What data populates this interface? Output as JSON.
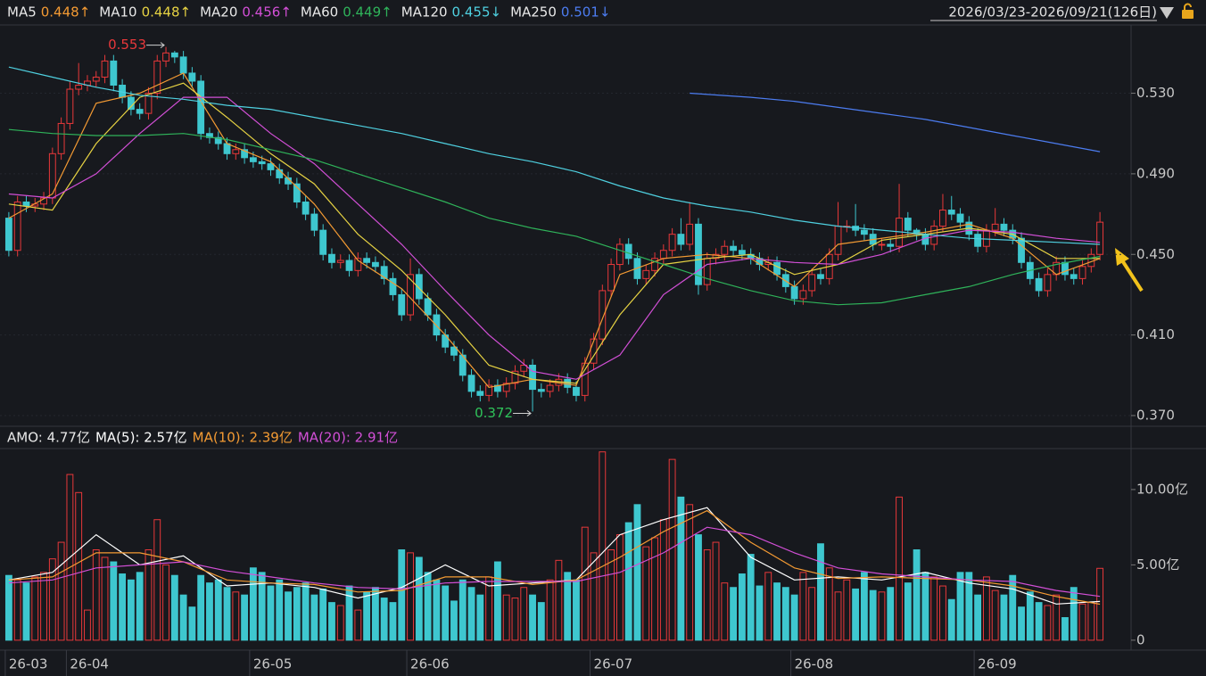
{
  "header": {
    "range": "2026/03/23-2026/09/21(126日)"
  },
  "chart_data": [
    {
      "type": "candlestick",
      "up_color": "#e8383a",
      "down_color": "#3ec7cf",
      "grid": true,
      "xlim": [
        -0.5,
        125.5
      ],
      "ylim": [
        0.366,
        0.563
      ],
      "yticks": [
        {
          "value": 0.37,
          "label": "0.370"
        },
        {
          "value": 0.41,
          "label": "0.410"
        },
        {
          "value": 0.45,
          "label": "0.450"
        },
        {
          "value": 0.49,
          "label": "0.490"
        },
        {
          "value": 0.53,
          "label": "0.530"
        }
      ],
      "open": [
        0.468,
        0.452,
        0.476,
        0.474,
        0.475,
        0.478,
        0.5,
        0.515,
        0.532,
        0.534,
        0.536,
        0.538,
        0.546,
        0.534,
        0.528,
        0.522,
        0.52,
        0.53,
        0.546,
        0.55,
        0.548,
        0.54,
        0.536,
        0.51,
        0.508,
        0.505,
        0.5,
        0.502,
        0.498,
        0.496,
        0.495,
        0.492,
        0.488,
        0.485,
        0.476,
        0.47,
        0.462,
        0.45,
        0.446,
        0.447,
        0.442,
        0.448,
        0.446,
        0.444,
        0.438,
        0.43,
        0.42,
        0.44,
        0.428,
        0.42,
        0.41,
        0.404,
        0.4,
        0.39,
        0.382,
        0.38,
        0.385,
        0.382,
        0.386,
        0.392,
        0.395,
        0.383,
        0.382,
        0.385,
        0.388,
        0.384,
        0.38,
        0.396,
        0.408,
        0.432,
        0.445,
        0.455,
        0.448,
        0.438,
        0.442,
        0.448,
        0.452,
        0.46,
        0.455,
        0.465,
        0.435,
        0.448,
        0.45,
        0.454,
        0.452,
        0.45,
        0.448,
        0.445,
        0.446,
        0.44,
        0.434,
        0.428,
        0.432,
        0.44,
        0.438,
        0.45,
        0.464,
        0.464,
        0.462,
        0.46,
        0.455,
        0.455,
        0.454,
        0.468,
        0.462,
        0.46,
        0.455,
        0.464,
        0.472,
        0.47,
        0.466,
        0.46,
        0.454,
        0.462,
        0.465,
        0.462,
        0.458,
        0.446,
        0.438,
        0.432,
        0.44,
        0.446,
        0.44,
        0.438,
        0.444,
        0.45
      ],
      "high": [
        0.471,
        0.479,
        0.479,
        0.478,
        0.481,
        0.503,
        0.518,
        0.536,
        0.545,
        0.539,
        0.541,
        0.549,
        0.549,
        0.537,
        0.531,
        0.525,
        0.533,
        0.549,
        0.553,
        0.551,
        0.551,
        0.543,
        0.539,
        0.513,
        0.511,
        0.508,
        0.505,
        0.505,
        0.501,
        0.499,
        0.498,
        0.495,
        0.491,
        0.488,
        0.479,
        0.473,
        0.465,
        0.453,
        0.45,
        0.45,
        0.451,
        0.451,
        0.449,
        0.447,
        0.441,
        0.433,
        0.448,
        0.443,
        0.431,
        0.423,
        0.413,
        0.407,
        0.403,
        0.393,
        0.385,
        0.388,
        0.388,
        0.389,
        0.395,
        0.398,
        0.398,
        0.386,
        0.388,
        0.391,
        0.391,
        0.387,
        0.399,
        0.411,
        0.435,
        0.448,
        0.458,
        0.458,
        0.451,
        0.445,
        0.451,
        0.455,
        0.463,
        0.468,
        0.476,
        0.468,
        0.451,
        0.453,
        0.457,
        0.457,
        0.455,
        0.453,
        0.451,
        0.449,
        0.449,
        0.443,
        0.437,
        0.435,
        0.443,
        0.443,
        0.453,
        0.476,
        0.467,
        0.475,
        0.465,
        0.463,
        0.458,
        0.458,
        0.485,
        0.471,
        0.463,
        0.463,
        0.467,
        0.48,
        0.479,
        0.473,
        0.469,
        0.463,
        0.465,
        0.473,
        0.468,
        0.465,
        0.461,
        0.449,
        0.441,
        0.443,
        0.449,
        0.449,
        0.443,
        0.447,
        0.453,
        0.471
      ],
      "low": [
        0.449,
        0.449,
        0.471,
        0.471,
        0.472,
        0.475,
        0.497,
        0.512,
        0.529,
        0.531,
        0.533,
        0.535,
        0.531,
        0.525,
        0.519,
        0.517,
        0.517,
        0.527,
        0.543,
        0.545,
        0.537,
        0.533,
        0.507,
        0.505,
        0.502,
        0.497,
        0.497,
        0.495,
        0.493,
        0.492,
        0.489,
        0.485,
        0.482,
        0.473,
        0.467,
        0.459,
        0.447,
        0.443,
        0.443,
        0.439,
        0.439,
        0.443,
        0.441,
        0.435,
        0.427,
        0.417,
        0.417,
        0.425,
        0.417,
        0.407,
        0.401,
        0.397,
        0.387,
        0.379,
        0.377,
        0.377,
        0.379,
        0.379,
        0.383,
        0.389,
        0.372,
        0.379,
        0.379,
        0.382,
        0.381,
        0.377,
        0.377,
        0.393,
        0.405,
        0.429,
        0.442,
        0.445,
        0.435,
        0.435,
        0.439,
        0.445,
        0.449,
        0.452,
        0.452,
        0.43,
        0.432,
        0.445,
        0.447,
        0.449,
        0.447,
        0.445,
        0.442,
        0.442,
        0.437,
        0.431,
        0.425,
        0.425,
        0.429,
        0.435,
        0.435,
        0.447,
        0.461,
        0.459,
        0.457,
        0.452,
        0.452,
        0.451,
        0.451,
        0.459,
        0.457,
        0.452,
        0.452,
        0.461,
        0.467,
        0.463,
        0.457,
        0.451,
        0.451,
        0.459,
        0.459,
        0.455,
        0.443,
        0.435,
        0.429,
        0.429,
        0.437,
        0.437,
        0.435,
        0.435,
        0.441,
        0.447
      ],
      "close": [
        0.452,
        0.476,
        0.474,
        0.475,
        0.478,
        0.5,
        0.515,
        0.532,
        0.534,
        0.536,
        0.538,
        0.546,
        0.534,
        0.528,
        0.522,
        0.52,
        0.53,
        0.546,
        0.55,
        0.548,
        0.54,
        0.536,
        0.51,
        0.508,
        0.505,
        0.5,
        0.502,
        0.498,
        0.496,
        0.495,
        0.492,
        0.488,
        0.485,
        0.476,
        0.47,
        0.462,
        0.45,
        0.446,
        0.447,
        0.442,
        0.448,
        0.446,
        0.444,
        0.438,
        0.43,
        0.42,
        0.44,
        0.428,
        0.42,
        0.41,
        0.404,
        0.4,
        0.39,
        0.382,
        0.38,
        0.385,
        0.382,
        0.386,
        0.392,
        0.395,
        0.383,
        0.382,
        0.385,
        0.388,
        0.384,
        0.38,
        0.396,
        0.408,
        0.432,
        0.445,
        0.455,
        0.448,
        0.438,
        0.442,
        0.448,
        0.452,
        0.46,
        0.455,
        0.465,
        0.435,
        0.448,
        0.45,
        0.454,
        0.452,
        0.45,
        0.448,
        0.445,
        0.446,
        0.44,
        0.434,
        0.428,
        0.432,
        0.44,
        0.438,
        0.45,
        0.464,
        0.464,
        0.462,
        0.46,
        0.455,
        0.455,
        0.454,
        0.468,
        0.462,
        0.46,
        0.455,
        0.464,
        0.472,
        0.47,
        0.466,
        0.46,
        0.454,
        0.462,
        0.465,
        0.462,
        0.458,
        0.446,
        0.438,
        0.432,
        0.44,
        0.446,
        0.44,
        0.438,
        0.444,
        0.45,
        0.466
      ],
      "max_label": {
        "text": "0.553",
        "index": 18
      },
      "min_label": {
        "text": "0.372",
        "index": 60
      },
      "series": [
        {
          "name": "MA5",
          "label": "0.448↑",
          "color": "#f39a33",
          "x": [
            0,
            5,
            10,
            15,
            20,
            25,
            30,
            35,
            40,
            45,
            50,
            55,
            60,
            65,
            70,
            75,
            80,
            85,
            90,
            95,
            100,
            105,
            110,
            115,
            120,
            125
          ],
          "values": [
            0.468,
            0.48,
            0.525,
            0.53,
            0.54,
            0.505,
            0.496,
            0.475,
            0.447,
            0.433,
            0.41,
            0.384,
            0.388,
            0.385,
            0.44,
            0.448,
            0.45,
            0.448,
            0.434,
            0.455,
            0.458,
            0.461,
            0.465,
            0.458,
            0.44,
            0.448
          ]
        },
        {
          "name": "MA10",
          "label": "0.448↑",
          "color": "#e6d243",
          "x": [
            0,
            5,
            10,
            15,
            20,
            25,
            30,
            35,
            40,
            45,
            50,
            55,
            60,
            65,
            70,
            75,
            80,
            85,
            90,
            95,
            100,
            105,
            110,
            115,
            120,
            125
          ],
          "values": [
            0.475,
            0.472,
            0.505,
            0.528,
            0.535,
            0.518,
            0.5,
            0.485,
            0.46,
            0.442,
            0.42,
            0.395,
            0.388,
            0.386,
            0.42,
            0.445,
            0.448,
            0.45,
            0.44,
            0.445,
            0.457,
            0.46,
            0.463,
            0.46,
            0.448,
            0.448
          ]
        },
        {
          "name": "MA20",
          "label": "0.456↑",
          "color": "#d24fd6",
          "x": [
            0,
            5,
            10,
            15,
            20,
            25,
            30,
            35,
            40,
            45,
            50,
            55,
            60,
            65,
            70,
            75,
            80,
            85,
            90,
            95,
            100,
            105,
            110,
            115,
            120,
            125
          ],
          "values": [
            0.48,
            0.478,
            0.49,
            0.51,
            0.528,
            0.528,
            0.51,
            0.495,
            0.475,
            0.455,
            0.432,
            0.41,
            0.392,
            0.388,
            0.4,
            0.43,
            0.445,
            0.448,
            0.446,
            0.445,
            0.45,
            0.458,
            0.462,
            0.461,
            0.458,
            0.456
          ]
        },
        {
          "name": "MA60",
          "label": "0.449↑",
          "color": "#2fb35a",
          "x": [
            0,
            5,
            10,
            15,
            20,
            25,
            30,
            35,
            40,
            45,
            50,
            55,
            60,
            65,
            70,
            75,
            80,
            85,
            90,
            95,
            100,
            105,
            110,
            115,
            120,
            125
          ],
          "values": [
            0.512,
            0.51,
            0.509,
            0.509,
            0.51,
            0.507,
            0.502,
            0.497,
            0.49,
            0.483,
            0.476,
            0.468,
            0.463,
            0.459,
            0.452,
            0.445,
            0.438,
            0.432,
            0.427,
            0.425,
            0.426,
            0.43,
            0.434,
            0.44,
            0.445,
            0.449
          ]
        },
        {
          "name": "MA120",
          "label": "0.455↓",
          "color": "#4fd0e0",
          "x": [
            0,
            5,
            10,
            15,
            20,
            25,
            30,
            35,
            40,
            45,
            50,
            55,
            60,
            65,
            70,
            75,
            80,
            85,
            90,
            95,
            100,
            105,
            110,
            115,
            120,
            125
          ],
          "values": [
            0.543,
            0.538,
            0.533,
            0.529,
            0.527,
            0.524,
            0.522,
            0.518,
            0.514,
            0.51,
            0.505,
            0.5,
            0.496,
            0.491,
            0.484,
            0.478,
            0.474,
            0.471,
            0.467,
            0.464,
            0.462,
            0.46,
            0.458,
            0.457,
            0.456,
            0.455
          ]
        },
        {
          "name": "MA250",
          "label": "0.501↓",
          "color": "#4c7cf0",
          "x": [
            78,
            85,
            90,
            95,
            100,
            105,
            110,
            115,
            120,
            125
          ],
          "values": [
            0.53,
            0.528,
            0.526,
            0.523,
            0.52,
            0.517,
            0.513,
            0.509,
            0.505,
            0.501
          ]
        }
      ]
    },
    {
      "type": "bar",
      "title": "AMO: 4.77亿",
      "xlim": [
        -0.5,
        125.5
      ],
      "ylim": [
        -0.6,
        12.6
      ],
      "yticks": [
        0,
        {
          "value": 5,
          "label": "5.00亿"
        },
        {
          "value": 10,
          "label": "10.00亿"
        }
      ],
      "xticks": [
        {
          "value": 0,
          "label": "26-03"
        },
        {
          "value": 7,
          "label": "26-04"
        },
        {
          "value": 28,
          "label": "26-05"
        },
        {
          "value": 46,
          "label": "26-06"
        },
        {
          "value": 67,
          "label": "26-07"
        },
        {
          "value": 90,
          "label": "26-08"
        },
        {
          "value": 111,
          "label": "26-09"
        }
      ],
      "values": [
        4.3,
        4.0,
        3.8,
        4.2,
        4.5,
        5.4,
        6.5,
        11.0,
        9.8,
        2.0,
        6.0,
        5.5,
        5.2,
        4.4,
        4.0,
        4.5,
        6.0,
        8.0,
        5.0,
        4.3,
        3.0,
        2.2,
        4.3,
        3.8,
        4.0,
        3.5,
        3.2,
        3.0,
        4.8,
        4.5,
        3.6,
        4.0,
        3.2,
        3.5,
        3.8,
        3.0,
        3.4,
        2.5,
        2.3,
        3.6,
        2.0,
        3.2,
        3.5,
        2.8,
        2.5,
        6.0,
        5.8,
        5.5,
        4.5,
        4.0,
        3.6,
        2.6,
        4.0,
        3.5,
        3.0,
        4.2,
        5.2,
        3.0,
        2.8,
        3.5,
        3.0,
        2.5,
        4.0,
        5.3,
        4.5,
        4.0,
        7.5,
        5.8,
        12.5,
        6.0,
        7.0,
        7.8,
        9.0,
        6.2,
        6.8,
        8.0,
        12.0,
        9.5,
        9.0,
        7.0,
        6.0,
        6.5,
        3.8,
        3.5,
        4.4,
        5.7,
        3.6,
        4.5,
        3.8,
        3.5,
        3.0,
        4.5,
        3.5,
        6.4,
        4.8,
        3.2,
        4.0,
        3.4,
        4.5,
        3.3,
        3.2,
        3.5,
        9.5,
        3.8,
        6.0,
        4.5,
        4.2,
        3.6,
        2.7,
        4.5,
        4.5,
        3.0,
        4.2,
        3.3,
        3.0,
        4.3,
        2.2,
        3.2,
        2.5,
        2.3,
        3.0,
        1.5,
        3.5,
        2.4,
        2.5,
        4.77
      ],
      "series": [
        {
          "name": "MA(5): 2.57亿",
          "color": "#ffffff",
          "x": [
            0,
            5,
            10,
            15,
            20,
            25,
            30,
            35,
            40,
            45,
            50,
            55,
            60,
            65,
            70,
            75,
            80,
            85,
            90,
            95,
            100,
            105,
            110,
            115,
            120,
            125
          ],
          "values": [
            4.0,
            4.5,
            7.0,
            5.0,
            5.6,
            3.6,
            3.8,
            3.5,
            2.8,
            3.5,
            5.0,
            3.6,
            3.8,
            4.0,
            7.0,
            8.0,
            8.8,
            5.5,
            4.0,
            4.2,
            4.0,
            4.5,
            3.8,
            3.4,
            2.4,
            2.57
          ]
        },
        {
          "name": "MA(10): 2.39亿",
          "color": "#f39a33",
          "x": [
            0,
            5,
            10,
            15,
            20,
            25,
            30,
            35,
            40,
            45,
            50,
            55,
            60,
            65,
            70,
            75,
            80,
            85,
            90,
            95,
            100,
            105,
            110,
            115,
            120,
            125
          ],
          "values": [
            4.0,
            4.2,
            5.8,
            5.8,
            5.2,
            4.0,
            3.8,
            3.7,
            3.2,
            3.3,
            4.2,
            4.2,
            3.7,
            4.0,
            5.5,
            7.2,
            8.6,
            6.5,
            4.8,
            4.1,
            4.2,
            4.1,
            4.0,
            3.6,
            2.9,
            2.39
          ]
        },
        {
          "name": "MA(20): 2.91亿",
          "color": "#d24fd6",
          "x": [
            0,
            5,
            10,
            15,
            20,
            25,
            30,
            35,
            40,
            45,
            50,
            55,
            60,
            65,
            70,
            75,
            80,
            85,
            90,
            95,
            100,
            105,
            110,
            115,
            120,
            125
          ],
          "values": [
            3.8,
            4.0,
            4.8,
            5.0,
            5.2,
            4.6,
            4.2,
            3.8,
            3.5,
            3.4,
            3.8,
            3.9,
            3.9,
            3.9,
            4.5,
            5.8,
            7.5,
            7.0,
            5.8,
            4.8,
            4.4,
            4.2,
            4.0,
            3.9,
            3.3,
            2.91
          ]
        }
      ]
    }
  ]
}
